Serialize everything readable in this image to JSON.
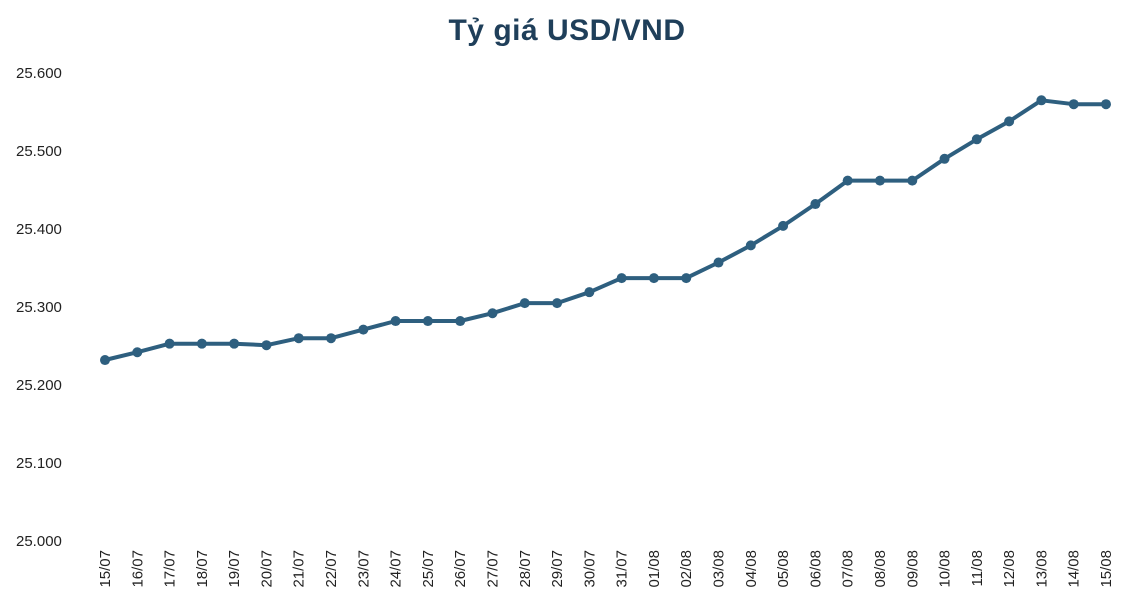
{
  "chart_data": {
    "type": "line",
    "title": "Tỷ giá USD/VND",
    "xlabel": "",
    "ylabel": "",
    "categories": [
      "15/07",
      "16/07",
      "17/07",
      "18/07",
      "19/07",
      "20/07",
      "21/07",
      "22/07",
      "23/07",
      "24/07",
      "25/07",
      "26/07",
      "27/07",
      "28/07",
      "29/07",
      "30/07",
      "31/07",
      "01/08",
      "02/08",
      "03/08",
      "04/08",
      "05/08",
      "06/08",
      "07/08",
      "08/08",
      "09/08",
      "10/08",
      "11/08",
      "12/08",
      "13/08",
      "14/08",
      "15/08"
    ],
    "yticks": [
      "25.000",
      "25.100",
      "25.200",
      "25.300",
      "25.400",
      "25.500",
      "25.600"
    ],
    "ylim": [
      25000,
      25600
    ],
    "grid": false,
    "legend": "none",
    "series": [
      {
        "values": [
          25232,
          25242,
          25253,
          25253,
          25253,
          25251,
          25260,
          25260,
          25271,
          25282,
          25282,
          25282,
          25292,
          25305,
          25305,
          25319,
          25337,
          25337,
          25337,
          25357,
          25379,
          25404,
          25432,
          25462,
          25462,
          25462,
          25490,
          25515,
          25538,
          25565,
          25560,
          25560
        ],
        "color": "#2e5f7f"
      }
    ],
    "title_color": "#1f3f5a"
  }
}
